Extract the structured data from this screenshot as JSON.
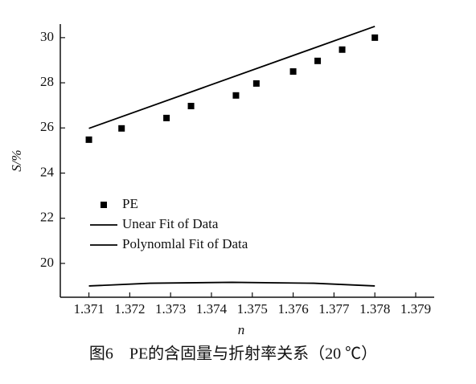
{
  "chart_data": {
    "type": "scatter",
    "caption": "图6　PE的含固量与折射率关系（20 ℃）",
    "x_label": "n",
    "y_label": "S/%",
    "xlim": [
      1.3703,
      1.379
    ],
    "ylim": [
      18.5,
      30.6
    ],
    "xticks": [
      1.371,
      1.372,
      1.373,
      1.374,
      1.375,
      1.376,
      1.377,
      1.378,
      1.379
    ],
    "yticks": [
      20,
      22,
      24,
      26,
      28,
      30
    ],
    "legend": "lower left",
    "series": [
      {
        "name": "PE",
        "type": "scatter",
        "color": "#000000",
        "x": [
          1.371,
          1.3718,
          1.3729,
          1.3735,
          1.3746,
          1.3751,
          1.376,
          1.3766,
          1.3772,
          1.378
        ],
        "values": [
          25.48,
          25.98,
          26.44,
          26.97,
          27.44,
          27.97,
          28.5,
          28.97,
          29.47,
          30.0
        ]
      },
      {
        "name": "Unear Fit of Data",
        "type": "line",
        "color": "#000000",
        "x": [
          1.371,
          1.378
        ],
        "values": [
          25.98,
          30.5
        ]
      },
      {
        "name": "Polynomlal Fit of Data",
        "type": "line",
        "color": "#000000",
        "x": [
          1.371,
          1.3725,
          1.3745,
          1.3765,
          1.378
        ],
        "values": [
          19.0,
          19.12,
          19.16,
          19.12,
          19.0
        ]
      }
    ]
  }
}
